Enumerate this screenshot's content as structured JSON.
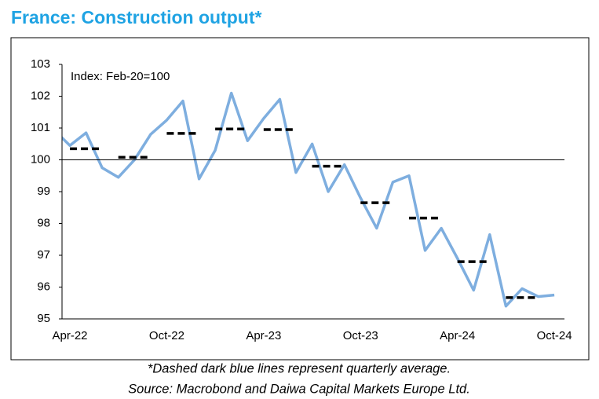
{
  "chart_data": {
    "type": "line",
    "title": "France: Construction output*",
    "annotation": "Index: Feb-20=100",
    "footnotes": [
      "*Dashed dark blue lines represent quarterly average.",
      "Source: Macrobond and Daiwa Capital Markets Europe Ltd."
    ],
    "categories": [
      null,
      "Apr-22",
      null,
      null,
      null,
      null,
      null,
      "Oct-22",
      null,
      null,
      null,
      null,
      null,
      "Apr-23",
      null,
      null,
      null,
      null,
      null,
      "Oct-23",
      null,
      null,
      null,
      null,
      null,
      "Apr-24",
      null,
      null,
      null,
      null,
      null,
      "Oct-24"
    ],
    "series": [
      {
        "color": "#7eaedf",
        "values": [
          100.95,
          100.45,
          100.85,
          99.75,
          99.45,
          100.0,
          100.8,
          101.25,
          101.85,
          99.4,
          100.3,
          102.1,
          100.6,
          101.3,
          101.9,
          99.6,
          100.5,
          99.0,
          99.85,
          98.8,
          97.85,
          99.3,
          99.5,
          97.15,
          97.85,
          96.9,
          95.9,
          97.65,
          95.4,
          95.95,
          95.7,
          95.75
        ]
      },
      {
        "color": "#000000",
        "dashed": true,
        "values": [
          null,
          null,
          100.35,
          null,
          null,
          100.08,
          null,
          null,
          100.83,
          null,
          null,
          100.97,
          null,
          null,
          100.95,
          null,
          null,
          99.8,
          null,
          null,
          98.65,
          null,
          null,
          98.17,
          null,
          null,
          96.8,
          null,
          null,
          95.67,
          null,
          null
        ]
      }
    ],
    "reference_line": 100,
    "ylim": [
      95,
      103
    ],
    "yticks": [
      95,
      96,
      97,
      98,
      99,
      100,
      101,
      102,
      103
    ]
  }
}
